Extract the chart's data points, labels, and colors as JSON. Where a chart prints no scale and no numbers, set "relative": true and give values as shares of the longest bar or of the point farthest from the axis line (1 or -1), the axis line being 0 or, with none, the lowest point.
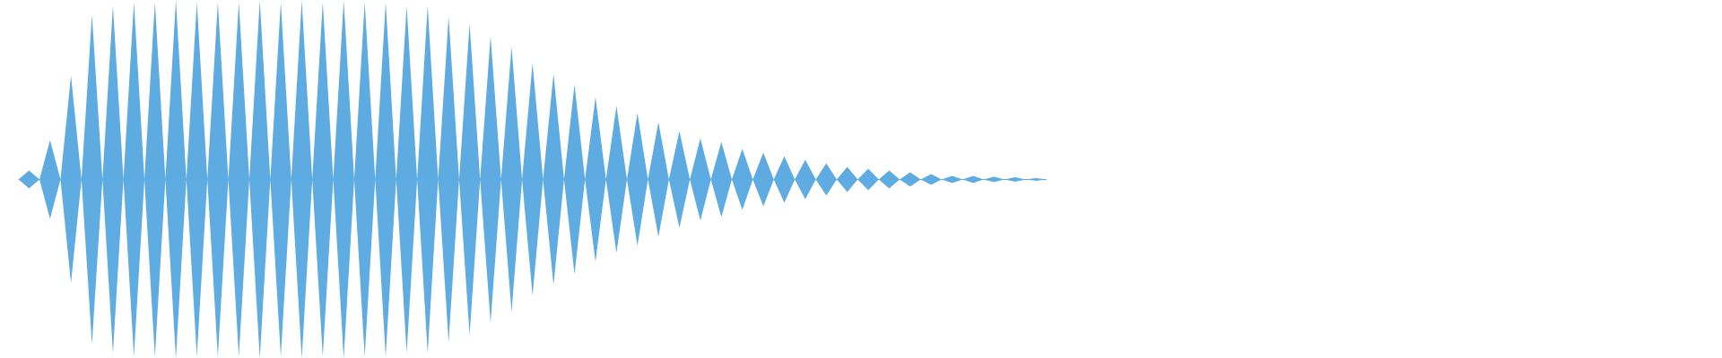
{
  "chart_data": {
    "type": "area",
    "relative": true,
    "categories": [
      null,
      null,
      null,
      null,
      null,
      null,
      null,
      null,
      null,
      null,
      null,
      null,
      null,
      null,
      null,
      null,
      null,
      null,
      null,
      null,
      null,
      null,
      null,
      null,
      null,
      null,
      null,
      null,
      null,
      null,
      null,
      null,
      null,
      null,
      null,
      null,
      null,
      null,
      null,
      null,
      null,
      null,
      null,
      null,
      null,
      null,
      null,
      null,
      null,
      null,
      null,
      null,
      null,
      null,
      null,
      null,
      null,
      null,
      null,
      null,
      null,
      null,
      null,
      null,
      null,
      null,
      null,
      null,
      null,
      null,
      null,
      null,
      null,
      null,
      null,
      null,
      null,
      null,
      null,
      null,
      null,
      null,
      null,
      null,
      null,
      null,
      null,
      null,
      null,
      null,
      null,
      null,
      null,
      null,
      null,
      null,
      null,
      null,
      null
    ],
    "series": [
      {
        "color": "#5dabe0",
        "values": [
          0,
          0.05,
          0,
          0.22,
          0,
          0.58,
          0,
          0.92,
          0,
          0.97,
          0,
          0.99,
          0,
          0.99,
          0,
          1.0,
          0,
          0.99,
          0,
          0.99,
          0,
          0.99,
          0,
          1.0,
          0,
          0.99,
          0,
          1.0,
          0,
          0.99,
          0,
          1.0,
          0,
          0.99,
          0,
          0.99,
          0,
          0.97,
          0,
          0.97,
          0,
          0.91,
          0,
          0.87,
          0,
          0.8,
          0,
          0.74,
          0,
          0.65,
          0,
          0.59,
          0,
          0.53,
          0,
          0.46,
          0,
          0.41,
          0,
          0.37,
          0,
          0.32,
          0,
          0.27,
          0,
          0.23,
          0,
          0.21,
          0,
          0.17,
          0,
          0.15,
          0,
          0.13,
          0,
          0.11,
          0,
          0.09,
          0,
          0.07,
          0,
          0.06,
          0,
          0.05,
          0,
          0.04,
          0,
          0.03,
          0,
          0.02,
          0,
          0.02,
          0,
          0.015,
          0,
          0.012,
          0,
          0.008,
          0
        ]
      },
      {
        "color": "#5eace1",
        "values": [
          0,
          -0.05,
          0,
          -0.22,
          0,
          -0.58,
          0,
          -0.92,
          0,
          -0.97,
          0,
          -0.99,
          0,
          -0.99,
          0,
          -1.0,
          0,
          -0.99,
          0,
          -0.99,
          0,
          -0.99,
          0,
          -1.0,
          0,
          -0.99,
          0,
          -1.0,
          0,
          -0.99,
          0,
          -1.0,
          0,
          -0.99,
          0,
          -0.99,
          0,
          -0.97,
          0,
          -0.97,
          0,
          -0.91,
          0,
          -0.87,
          0,
          -0.8,
          0,
          -0.74,
          0,
          -0.65,
          0,
          -0.59,
          0,
          -0.53,
          0,
          -0.46,
          0,
          -0.41,
          0,
          -0.37,
          0,
          -0.32,
          0,
          -0.27,
          0,
          -0.23,
          0,
          -0.21,
          0,
          -0.17,
          0,
          -0.15,
          0,
          -0.13,
          0,
          -0.11,
          0,
          -0.09,
          0,
          -0.07,
          0,
          -0.06,
          0,
          -0.05,
          0,
          -0.04,
          0,
          -0.03,
          0,
          -0.02,
          0,
          -0.02,
          0,
          -0.015,
          0,
          -0.012,
          0,
          -0.008,
          0
        ]
      }
    ]
  }
}
